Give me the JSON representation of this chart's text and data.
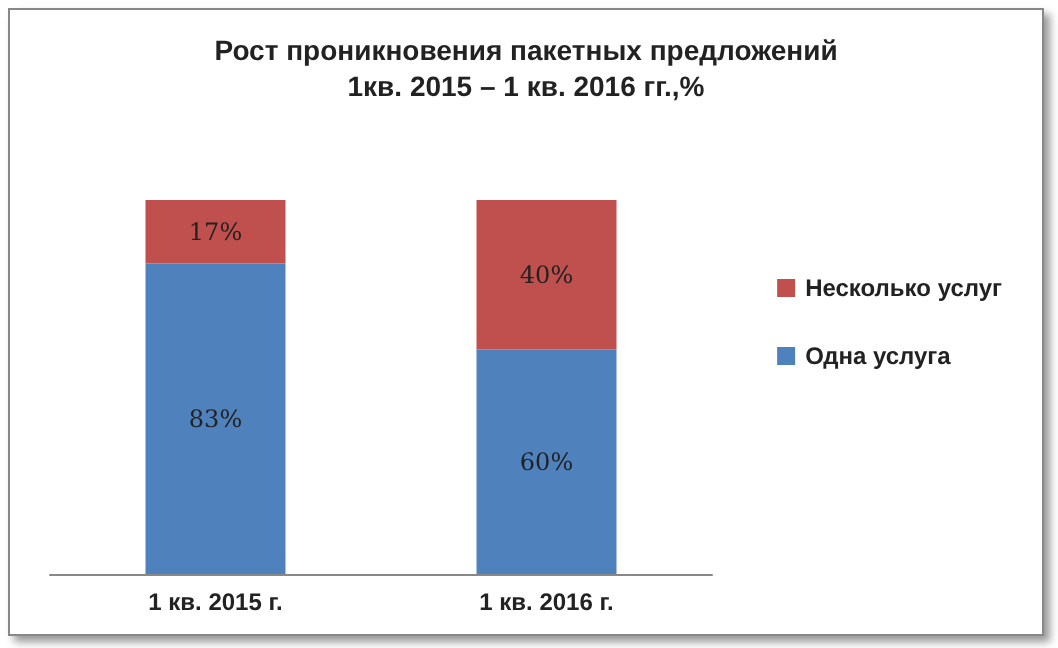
{
  "chart_data": {
    "type": "bar",
    "stacked": true,
    "title": "Рост проникновения пакетных предложений\n1кв. 2015 – 1 кв. 2016 гг.,%",
    "categories": [
      "1 кв. 2015 г.",
      "1 кв. 2016 г."
    ],
    "series": [
      {
        "name": "Одна услуга",
        "color": "#4f81bd",
        "values": [
          83,
          60
        ],
        "value_labels": [
          "83%",
          "60%"
        ]
      },
      {
        "name": "Несколько услуг",
        "color": "#c0504d",
        "values": [
          17,
          40
        ],
        "value_labels": [
          "17%",
          "40%"
        ]
      }
    ],
    "legend": "right"
  }
}
